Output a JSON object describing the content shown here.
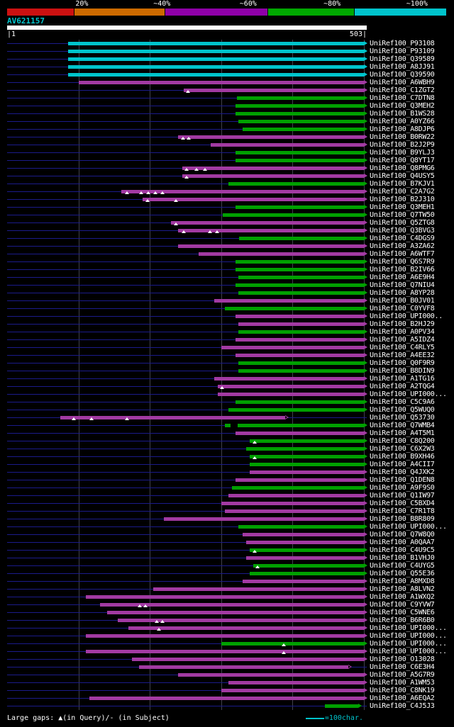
{
  "header": {
    "legend_segments": [
      {
        "label": "20%",
        "color": "#cc1111",
        "width_pct": 15.3,
        "label_pos_pct": 17.0
      },
      {
        "label": "~40%",
        "color": "#cc6a00",
        "width_pct": 20.6,
        "label_pos_pct": 35.2
      },
      {
        "label": "~60%",
        "color": "#8f00a8",
        "width_pct": 23.4,
        "label_pos_pct": 54.8
      },
      {
        "label": "~80%",
        "color": "#00a800",
        "width_pct": 19.7,
        "label_pos_pct": 73.9
      },
      {
        "label": "~100%",
        "color": "#00c4cc",
        "width_pct": 21.0,
        "label_pos_pct": 93.2
      }
    ],
    "query_id": "AV621157",
    "scale_start": "|1",
    "scale_end": "503|"
  },
  "footer": {
    "gaps_note": "Large gaps: ▲(in Query)/- (in Subject)",
    "scale_note": "=100char."
  },
  "colors": {
    "cyan": "#00c4cc",
    "magenta": "#a23aa2",
    "green": "#00a000",
    "track": "#1b1b8a",
    "grid": "#40404c",
    "query_bar": "#ffffff",
    "background": "#000000",
    "text": "#ffffff"
  },
  "chart_data": {
    "type": "bar",
    "subtype": "blast_alignment_overview",
    "title": "AV621157",
    "query_length": 503,
    "xlim": [
      1,
      503
    ],
    "grid_positions": [
      100,
      200,
      300,
      400,
      500
    ],
    "rows": [
      {
        "label": "UniRef100_P93108",
        "color": "cyan",
        "start": 85,
        "end": 500
      },
      {
        "label": "UniRef100_P93109",
        "color": "cyan",
        "start": 85,
        "end": 500
      },
      {
        "label": "UniRef100_Q39589",
        "color": "cyan",
        "start": 85,
        "end": 500
      },
      {
        "label": "UniRef100_A8JJ91",
        "color": "cyan",
        "start": 85,
        "end": 500
      },
      {
        "label": "UniRef100_Q39590",
        "color": "cyan",
        "start": 85,
        "end": 500
      },
      {
        "label": "UniRef100_A6WBH9",
        "color": "magenta",
        "start": 100,
        "end": 500
      },
      {
        "label": "UniRef100_C1ZGT2",
        "color": "magenta",
        "start": 247,
        "end": 500,
        "gaps": [
          253
        ]
      },
      {
        "label": "UniRef100_C7DTN8",
        "color": "green",
        "start": 322,
        "end": 500
      },
      {
        "label": "UniRef100_Q3MEH2",
        "color": "green",
        "start": 320,
        "end": 500
      },
      {
        "label": "UniRef100_B1WS28",
        "color": "green",
        "start": 320,
        "end": 500
      },
      {
        "label": "UniRef100_A0YZ66",
        "color": "green",
        "start": 324,
        "end": 500
      },
      {
        "label": "UniRef100_A8DJP6",
        "color": "green",
        "start": 330,
        "end": 500
      },
      {
        "label": "UniRef100_B0RW22",
        "color": "magenta",
        "start": 240,
        "end": 500,
        "gaps": [
          246,
          254
        ]
      },
      {
        "label": "UniRef100_B2J2P9",
        "color": "magenta",
        "start": 285,
        "end": 500
      },
      {
        "label": "UniRef100_B9YLJ3",
        "color": "green",
        "start": 320,
        "end": 500
      },
      {
        "label": "UniRef100_Q8YT17",
        "color": "green",
        "start": 320,
        "end": 500
      },
      {
        "label": "UniRef100_Q8PMG6",
        "color": "magenta",
        "start": 245,
        "end": 500,
        "gaps": [
          251,
          265,
          277
        ]
      },
      {
        "label": "UniRef100_Q4USY5",
        "color": "magenta",
        "start": 245,
        "end": 500,
        "gaps": [
          251
        ]
      },
      {
        "label": "UniRef100_B7KJV1",
        "color": "green",
        "start": 310,
        "end": 500
      },
      {
        "label": "UniRef100_C2A7G2",
        "color": "magenta",
        "start": 160,
        "end": 500,
        "gaps": [
          168,
          188,
          198,
          208,
          218
        ]
      },
      {
        "label": "UniRef100_B2J310",
        "color": "magenta",
        "start": 190,
        "end": 500,
        "gaps": [
          197,
          237
        ]
      },
      {
        "label": "UniRef100_Q3MEH1",
        "color": "green",
        "start": 320,
        "end": 500
      },
      {
        "label": "UniRef100_Q7TW50",
        "color": "green",
        "start": 302,
        "end": 500
      },
      {
        "label": "UniRef100_Q5ZTG8",
        "color": "magenta",
        "start": 230,
        "end": 500,
        "gaps": [
          237
        ]
      },
      {
        "label": "UniRef100_Q3BVG3",
        "color": "magenta",
        "start": 240,
        "end": 500,
        "gaps": [
          247,
          284,
          294
        ]
      },
      {
        "label": "UniRef100_C4DGS9",
        "color": "green",
        "start": 325,
        "end": 500
      },
      {
        "label": "UniRef100_A3ZA62",
        "color": "magenta",
        "start": 240,
        "end": 500
      },
      {
        "label": "UniRef100_A6WTF7",
        "color": "magenta",
        "start": 268,
        "end": 500
      },
      {
        "label": "UniRef100_Q6S7R9",
        "color": "green",
        "start": 320,
        "end": 500
      },
      {
        "label": "UniRef100_B2IV66",
        "color": "green",
        "start": 320,
        "end": 500
      },
      {
        "label": "UniRef100_A6E9H4",
        "color": "green",
        "start": 324,
        "end": 500
      },
      {
        "label": "UniRef100_Q7NIU4",
        "color": "green",
        "start": 320,
        "end": 500
      },
      {
        "label": "UniRef100_A8YP28",
        "color": "green",
        "start": 324,
        "end": 500
      },
      {
        "label": "UniRef100_B0JV01",
        "color": "magenta",
        "start": 290,
        "end": 500
      },
      {
        "label": "UniRef100_C0YVF8",
        "color": "green",
        "start": 305,
        "end": 500
      },
      {
        "label": "UniRef100_UPI000..",
        "color": "magenta",
        "start": 320,
        "end": 500
      },
      {
        "label": "UniRef100_B2HJ29",
        "color": "magenta",
        "start": 324,
        "end": 500
      },
      {
        "label": "UniRef100_A0PV34",
        "color": "green",
        "start": 324,
        "end": 500
      },
      {
        "label": "UniRef100_A5IDZ4",
        "color": "magenta",
        "start": 320,
        "end": 500
      },
      {
        "label": "UniRef100_C4RLY5",
        "color": "magenta",
        "start": 300,
        "end": 500
      },
      {
        "label": "UniRef100_A4EE32",
        "color": "magenta",
        "start": 320,
        "end": 500
      },
      {
        "label": "UniRef100_Q0F9R9",
        "color": "green",
        "start": 324,
        "end": 500
      },
      {
        "label": "UniRef100_B8DIN9",
        "color": "green",
        "start": 324,
        "end": 500
      },
      {
        "label": "UniRef100_A1TG16",
        "color": "magenta",
        "start": 290,
        "end": 500
      },
      {
        "label": "UniRef100_A2TQG4",
        "color": "magenta",
        "start": 295,
        "end": 500,
        "gaps": [
          301
        ]
      },
      {
        "label": "UniRef100_UPI000...",
        "color": "magenta",
        "start": 295,
        "end": 500
      },
      {
        "label": "UniRef100_C5C9A6",
        "color": "green",
        "start": 320,
        "end": 500
      },
      {
        "label": "UniRef100_Q5WUQ0",
        "color": "green",
        "start": 310,
        "end": 500
      },
      {
        "label": "UniRef100_Q53730",
        "color": "magenta",
        "start": 75,
        "end": 390,
        "arrow": "open",
        "gaps": [
          93,
          118,
          168
        ]
      },
      {
        "label": "UniRef100_Q7WMB4",
        "color": "green",
        "start": 305,
        "end": 500,
        "breaks": [
          [
            313,
            323
          ]
        ]
      },
      {
        "label": "UniRef100_A4T5M1",
        "color": "magenta",
        "start": 320,
        "end": 500
      },
      {
        "label": "UniRef100_C8Q200",
        "color": "green",
        "start": 340,
        "end": 500,
        "gaps": [
          347
        ]
      },
      {
        "label": "UniRef100_C6X2W3",
        "color": "green",
        "start": 335,
        "end": 500
      },
      {
        "label": "UniRef100_B9XH46",
        "color": "green",
        "start": 340,
        "end": 500,
        "gaps": [
          347
        ]
      },
      {
        "label": "UniRef100_A4CII7",
        "color": "green",
        "start": 340,
        "end": 500
      },
      {
        "label": "UniRef100_Q4JXK2",
        "color": "magenta",
        "start": 340,
        "end": 500
      },
      {
        "label": "UniRef100_Q1DEN8",
        "color": "magenta",
        "start": 320,
        "end": 500
      },
      {
        "label": "UniRef100_A9F9S0",
        "color": "green",
        "start": 315,
        "end": 500
      },
      {
        "label": "UniRef100_Q1IW97",
        "color": "magenta",
        "start": 310,
        "end": 500
      },
      {
        "label": "UniRef100_C5BXD4",
        "color": "magenta",
        "start": 300,
        "end": 500
      },
      {
        "label": "UniRef100_C7R1T8",
        "color": "magenta",
        "start": 305,
        "end": 500
      },
      {
        "label": "UniRef100_B8R809",
        "color": "magenta",
        "start": 220,
        "end": 500
      },
      {
        "label": "UniRef100_UPI000...",
        "color": "green",
        "start": 324,
        "end": 500
      },
      {
        "label": "UniRef100_Q7W8Q0",
        "color": "magenta",
        "start": 330,
        "end": 500
      },
      {
        "label": "UniRef100_A0QAA7",
        "color": "magenta",
        "start": 335,
        "end": 500
      },
      {
        "label": "UniRef100_C4U9C5",
        "color": "green",
        "start": 340,
        "end": 500,
        "gaps": [
          347
        ]
      },
      {
        "label": "UniRef100_B1VHJ0",
        "color": "magenta",
        "start": 335,
        "end": 500
      },
      {
        "label": "UniRef100_C4UYG5",
        "color": "green",
        "start": 345,
        "end": 500,
        "gaps": [
          351
        ]
      },
      {
        "label": "UniRef100_Q55E36",
        "color": "green",
        "start": 340,
        "end": 500
      },
      {
        "label": "UniRef100_A8MXD8",
        "color": "magenta",
        "start": 330,
        "end": 500
      },
      {
        "label": "UniRef100_A8LVN2",
        "color": "magenta",
        "start": 205,
        "end": 500
      },
      {
        "label": "UniRef100_A1WXQ2",
        "color": "magenta",
        "start": 110,
        "end": 500
      },
      {
        "label": "UniRef100_C9YVW7",
        "color": "magenta",
        "start": 130,
        "end": 500,
        "gaps": [
          186,
          194
        ]
      },
      {
        "label": "UniRef100_C5WNE6",
        "color": "magenta",
        "start": 140,
        "end": 500
      },
      {
        "label": "UniRef100_B6R6B0",
        "color": "magenta",
        "start": 155,
        "end": 500,
        "gaps": [
          210,
          218
        ]
      },
      {
        "label": "UniRef100_UPI000...",
        "color": "magenta",
        "start": 170,
        "end": 500,
        "gaps": [
          213
        ]
      },
      {
        "label": "UniRef100_UPI000...",
        "color": "magenta",
        "start": 110,
        "end": 500
      },
      {
        "label": "UniRef100_UPI000...",
        "color": "green",
        "start": 300,
        "end": 500,
        "gaps": [
          388
        ]
      },
      {
        "label": "UniRef100_UPI000...",
        "color": "magenta",
        "start": 110,
        "end": 500,
        "gaps": [
          388
        ]
      },
      {
        "label": "UniRef100_O13028",
        "color": "magenta",
        "start": 175,
        "end": 500
      },
      {
        "label": "UniRef100_C6E3H4",
        "color": "magenta",
        "start": 185,
        "end": 478,
        "arrow": "open"
      },
      {
        "label": "UniRef100_A5G7R9",
        "color": "magenta",
        "start": 240,
        "end": 500
      },
      {
        "label": "UniRef100_A1WM53",
        "color": "magenta",
        "start": 310,
        "end": 500
      },
      {
        "label": "UniRef100_C8NK19",
        "color": "magenta",
        "start": 300,
        "end": 500
      },
      {
        "label": "UniRef100_A6EQA2",
        "color": "magenta",
        "start": 115,
        "end": 500
      },
      {
        "label": "UniRef100_C4J5J3",
        "color": "green",
        "start": 445,
        "end": 492
      }
    ]
  }
}
